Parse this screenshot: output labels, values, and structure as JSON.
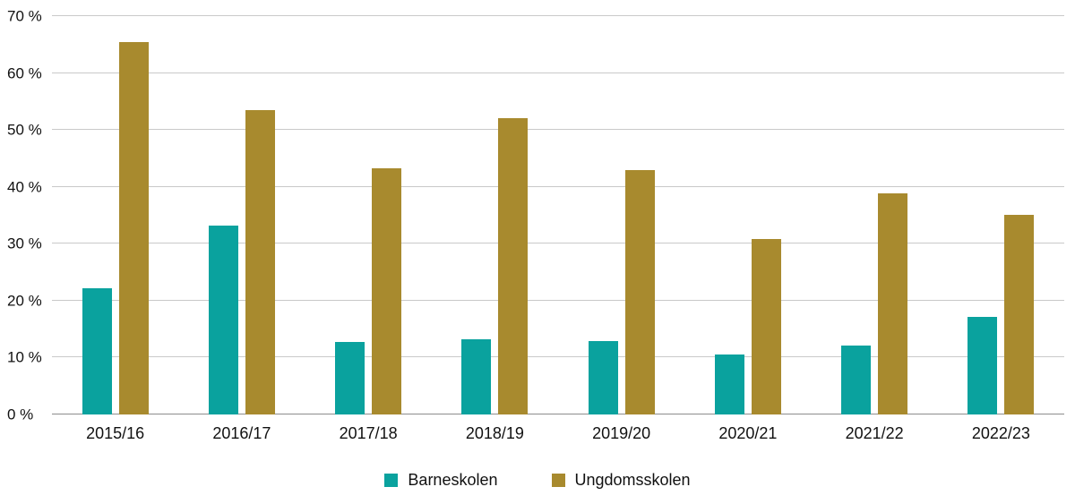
{
  "chart_data": {
    "type": "bar",
    "title": "",
    "xlabel": "",
    "ylabel": "",
    "categories": [
      "2015/16",
      "2016/17",
      "2017/18",
      "2018/19",
      "2019/20",
      "2020/21",
      "2021/22",
      "2022/23"
    ],
    "series": [
      {
        "name": "Barneskolen",
        "color": "#0aa29e",
        "values": [
          22.2,
          33.2,
          12.7,
          13.2,
          12.9,
          10.6,
          12.1,
          17.1
        ]
      },
      {
        "name": "Ungdomsskolen",
        "color": "#a88a2e",
        "values": [
          65.5,
          53.5,
          43.2,
          52.0,
          43.0,
          30.9,
          38.9,
          35.1
        ]
      }
    ],
    "ylim": [
      0,
      70
    ],
    "ytick_step": 10,
    "ytick_suffix": " %",
    "grid": true,
    "legend_position": "bottom",
    "colors": {
      "gridline": "#c9c9c9",
      "axis_line": "#8c8c8c",
      "text": "#111111",
      "background": "#ffffff"
    }
  }
}
